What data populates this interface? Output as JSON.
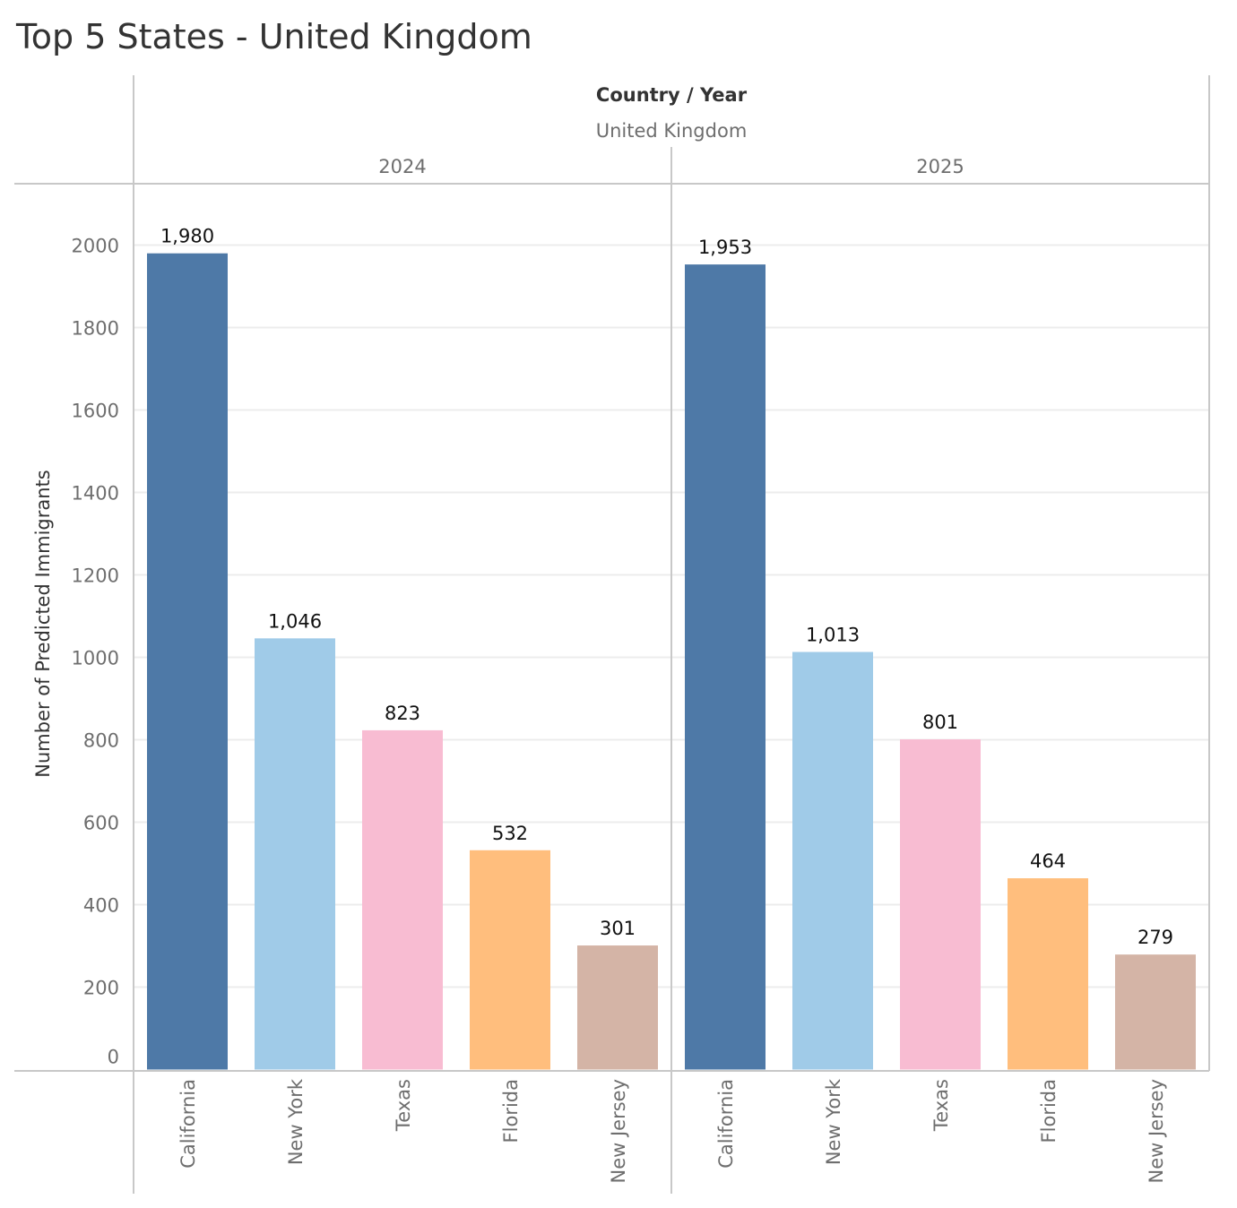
{
  "chart_data": {
    "type": "bar",
    "title": "Top 5 States - United Kingdom",
    "header": {
      "field_label": "Country / Year",
      "country": "United Kingdom"
    },
    "ylabel": "Number of Predicted Immigrants",
    "ylim": [
      0,
      2100
    ],
    "yticks": [
      0,
      200,
      400,
      600,
      800,
      1000,
      1200,
      1400,
      1600,
      1800,
      2000
    ],
    "grid": true,
    "categories": [
      "California",
      "New York",
      "Texas",
      "Florida",
      "New Jersey"
    ],
    "colors": [
      "#4e79a7",
      "#a0cbe8",
      "#f8bcd2",
      "#ffbe7d",
      "#d4b4a6"
    ],
    "panels": [
      {
        "year": "2024",
        "values": [
          1980,
          1046,
          823,
          532,
          301
        ],
        "labels": [
          "1,980",
          "1,046",
          "823",
          "532",
          "301"
        ]
      },
      {
        "year": "2025",
        "values": [
          1953,
          1013,
          801,
          464,
          279
        ],
        "labels": [
          "1,953",
          "1,013",
          "801",
          "464",
          "279"
        ]
      }
    ]
  }
}
